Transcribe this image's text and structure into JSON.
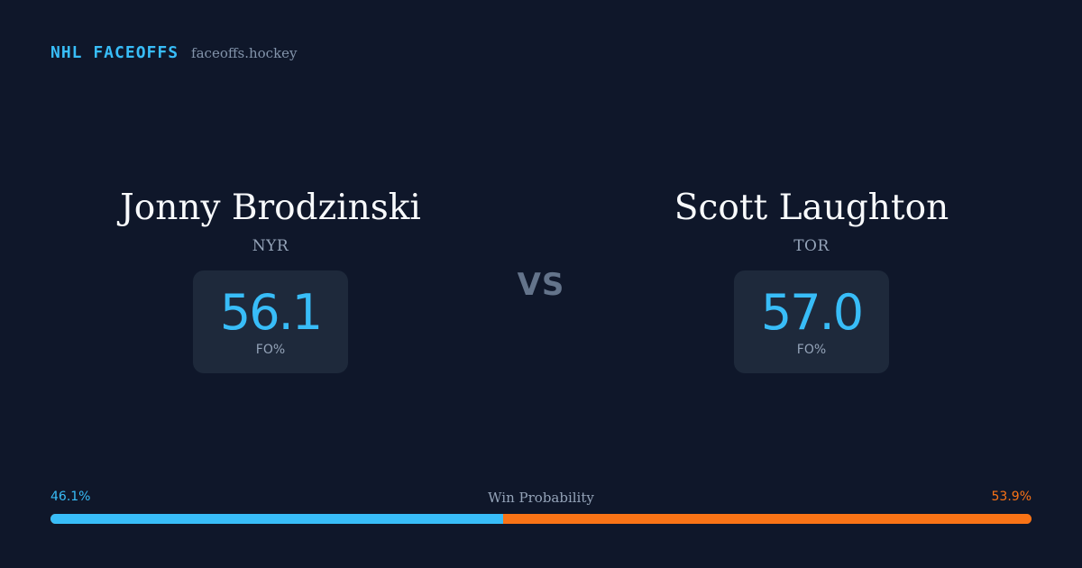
{
  "brand": {
    "name": "NHL FACEOFFS",
    "site": "faceoffs.hockey"
  },
  "player1": {
    "name": "Jonny Brodzinski",
    "team": "NYR",
    "stat_value": "56.1",
    "stat_label": "FO%"
  },
  "vs_label": "VS",
  "player2": {
    "name": "Scott Laughton",
    "team": "TOR",
    "stat_value": "57.0",
    "stat_label": "FO%"
  },
  "win_probability": {
    "label": "Win Probability",
    "left_text": "46.1%",
    "right_text": "53.9%",
    "left_value": 46.1,
    "right_value": 53.9,
    "left_color": "#38bdf8",
    "right_color": "#f97316"
  },
  "colors": {
    "background": "#0f172a",
    "card": "#1e293b",
    "accent": "#38bdf8"
  }
}
